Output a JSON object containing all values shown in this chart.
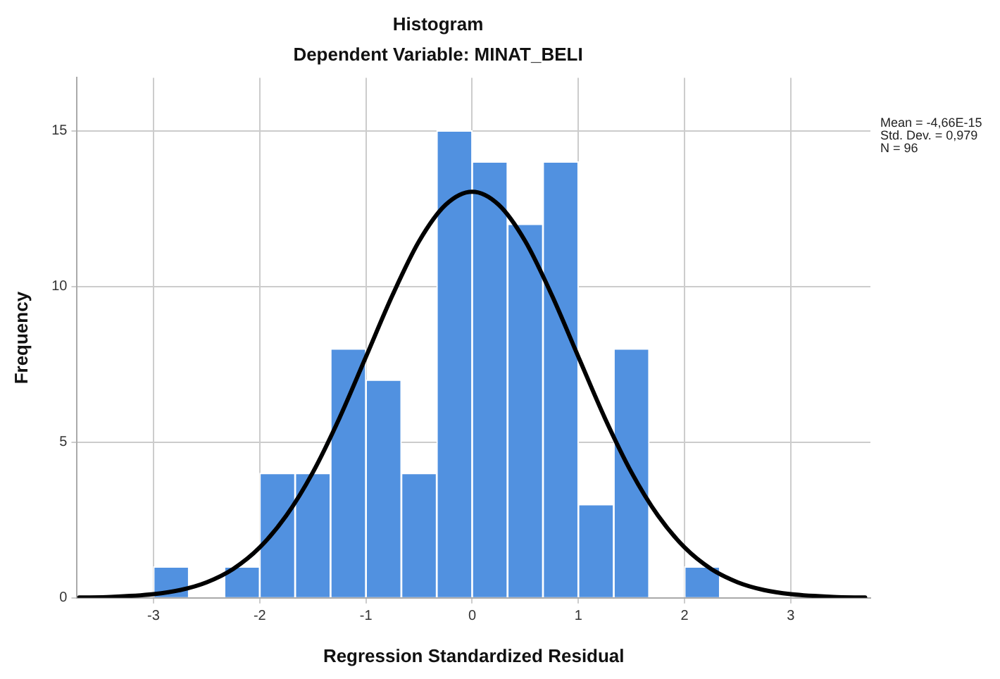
{
  "chart_data": {
    "type": "histogram",
    "title": "Histogram",
    "subtitle": "Dependent Variable: MINAT_BELI",
    "xlabel": "Regression Standardized Residual",
    "ylabel": "Frequency",
    "bins": [
      -3,
      -2.667,
      -2.333,
      -2,
      -1.667,
      -1.333,
      -1,
      -0.667,
      -0.333,
      0,
      0.333,
      0.667,
      1,
      1.333,
      1.667,
      2,
      2.333
    ],
    "series": [
      {
        "color": "#5191e0",
        "values": [
          1,
          0,
          1,
          4,
          4,
          8,
          7,
          4,
          15,
          14,
          12,
          14,
          3,
          8,
          0,
          1
        ]
      },
      {
        "type": "line",
        "color": "#000000",
        "x": [
          -3.7,
          -3.4,
          -3,
          -2.75,
          -2.5,
          -2.25,
          -2,
          -1.75,
          -1.5,
          -1.25,
          -1,
          -0.75,
          -0.5,
          -0.25,
          0,
          0.25,
          0.5,
          0.75,
          1,
          1.25,
          1.5,
          1.75,
          2,
          2.25,
          2.5,
          2.75,
          3,
          3.4,
          3.7
        ],
        "values": [
          0.01,
          0.03,
          0.12,
          0.25,
          0.5,
          0.93,
          1.62,
          2.64,
          4.03,
          5.77,
          7.74,
          9.72,
          11.45,
          12.62,
          13.04,
          12.62,
          11.45,
          9.72,
          7.74,
          5.77,
          4.03,
          2.64,
          1.62,
          0.93,
          0.5,
          0.25,
          0.12,
          0.03,
          0.01
        ]
      }
    ],
    "xlim": [
      -3.72,
      3.75
    ],
    "xticks": [
      -3,
      -2,
      -1,
      0,
      1,
      2,
      3
    ],
    "ylim": [
      0,
      16.7
    ],
    "yticks": [
      0,
      5,
      10,
      15
    ],
    "grid": true,
    "legend": false,
    "marker": "none",
    "line_style": "solid",
    "annotations": [
      "Mean = -4,66E-15",
      "Std. Dev. = 0,979",
      "N = 96"
    ]
  }
}
